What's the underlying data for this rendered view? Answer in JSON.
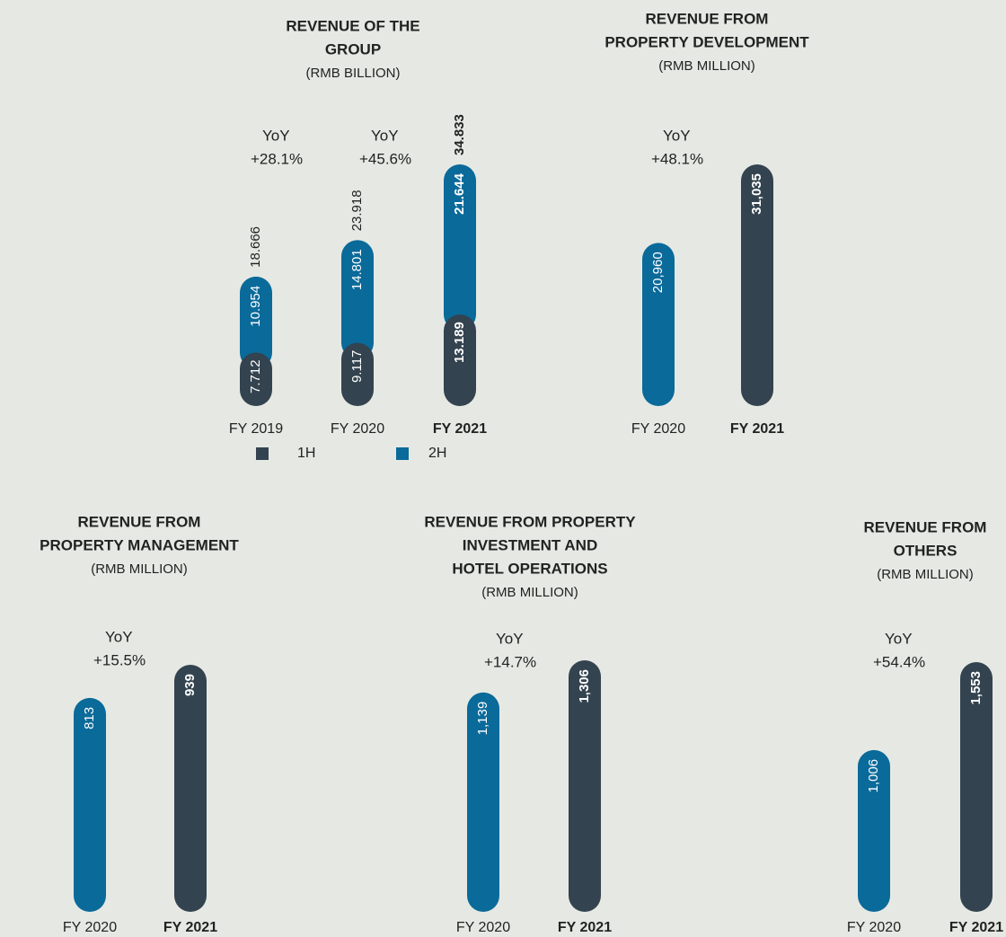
{
  "chart_data": [
    {
      "type": "stacked_bar",
      "title": [
        "REVENUE OF THE",
        "GROUP"
      ],
      "subtitle": "(RMB BILLION)",
      "categories": [
        "FY 2019",
        "FY 2020",
        "FY 2021"
      ],
      "series": [
        {
          "name": "1H",
          "color": "#33434f",
          "values": [
            7.712,
            9.117,
            13.189
          ]
        },
        {
          "name": "2H",
          "color": "#0a6a9a",
          "values": [
            10.954,
            14.801,
            21.644
          ]
        }
      ],
      "totals": [
        18.666,
        23.918,
        34.833
      ],
      "annotations": [
        [
          "YoY",
          "+28.1%"
        ],
        [
          "YoY",
          "+45.6%"
        ]
      ]
    },
    {
      "type": "bar",
      "title": [
        "REVENUE FROM",
        "PROPERTY DEVELOPMENT"
      ],
      "subtitle": "(RMB MILLION)",
      "categories": [
        "FY 2020",
        "FY 2021"
      ],
      "values": [
        20960,
        31035
      ],
      "value_labels": [
        "20,960",
        "31,035"
      ],
      "colors": [
        "#0a6a9a",
        "#33434f"
      ],
      "annotations": [
        [
          "YoY",
          "+48.1%"
        ]
      ]
    },
    {
      "type": "bar",
      "title": [
        "REVENUE FROM",
        "PROPERTY MANAGEMENT"
      ],
      "subtitle": "(RMB MILLION)",
      "categories": [
        "FY 2020",
        "FY 2021"
      ],
      "values": [
        813,
        939
      ],
      "colors": [
        "#0a6a9a",
        "#33434f"
      ],
      "annotations": [
        [
          "YoY",
          "+15.5%"
        ]
      ]
    },
    {
      "type": "bar",
      "title": [
        "REVENUE FROM PROPERTY",
        "INVESTMENT AND",
        "HOTEL OPERATIONS"
      ],
      "subtitle": "(RMB MILLION)",
      "categories": [
        "FY 2020",
        "FY 2021"
      ],
      "values": [
        1139,
        1306
      ],
      "value_labels": [
        "1,139",
        "1,306"
      ],
      "colors": [
        "#0a6a9a",
        "#33434f"
      ],
      "annotations": [
        [
          "YoY",
          "+14.7%"
        ]
      ]
    },
    {
      "type": "bar",
      "title": [
        "REVENUE FROM",
        "OTHERS"
      ],
      "subtitle": "(RMB MILLION)",
      "categories": [
        "FY 2020",
        "FY 2021"
      ],
      "values": [
        1006,
        1553
      ],
      "value_labels": [
        "1,006",
        "1,553"
      ],
      "colors": [
        "#0a6a9a",
        "#33434f"
      ],
      "annotations": [
        [
          "YoY",
          "+54.4%"
        ]
      ]
    }
  ]
}
